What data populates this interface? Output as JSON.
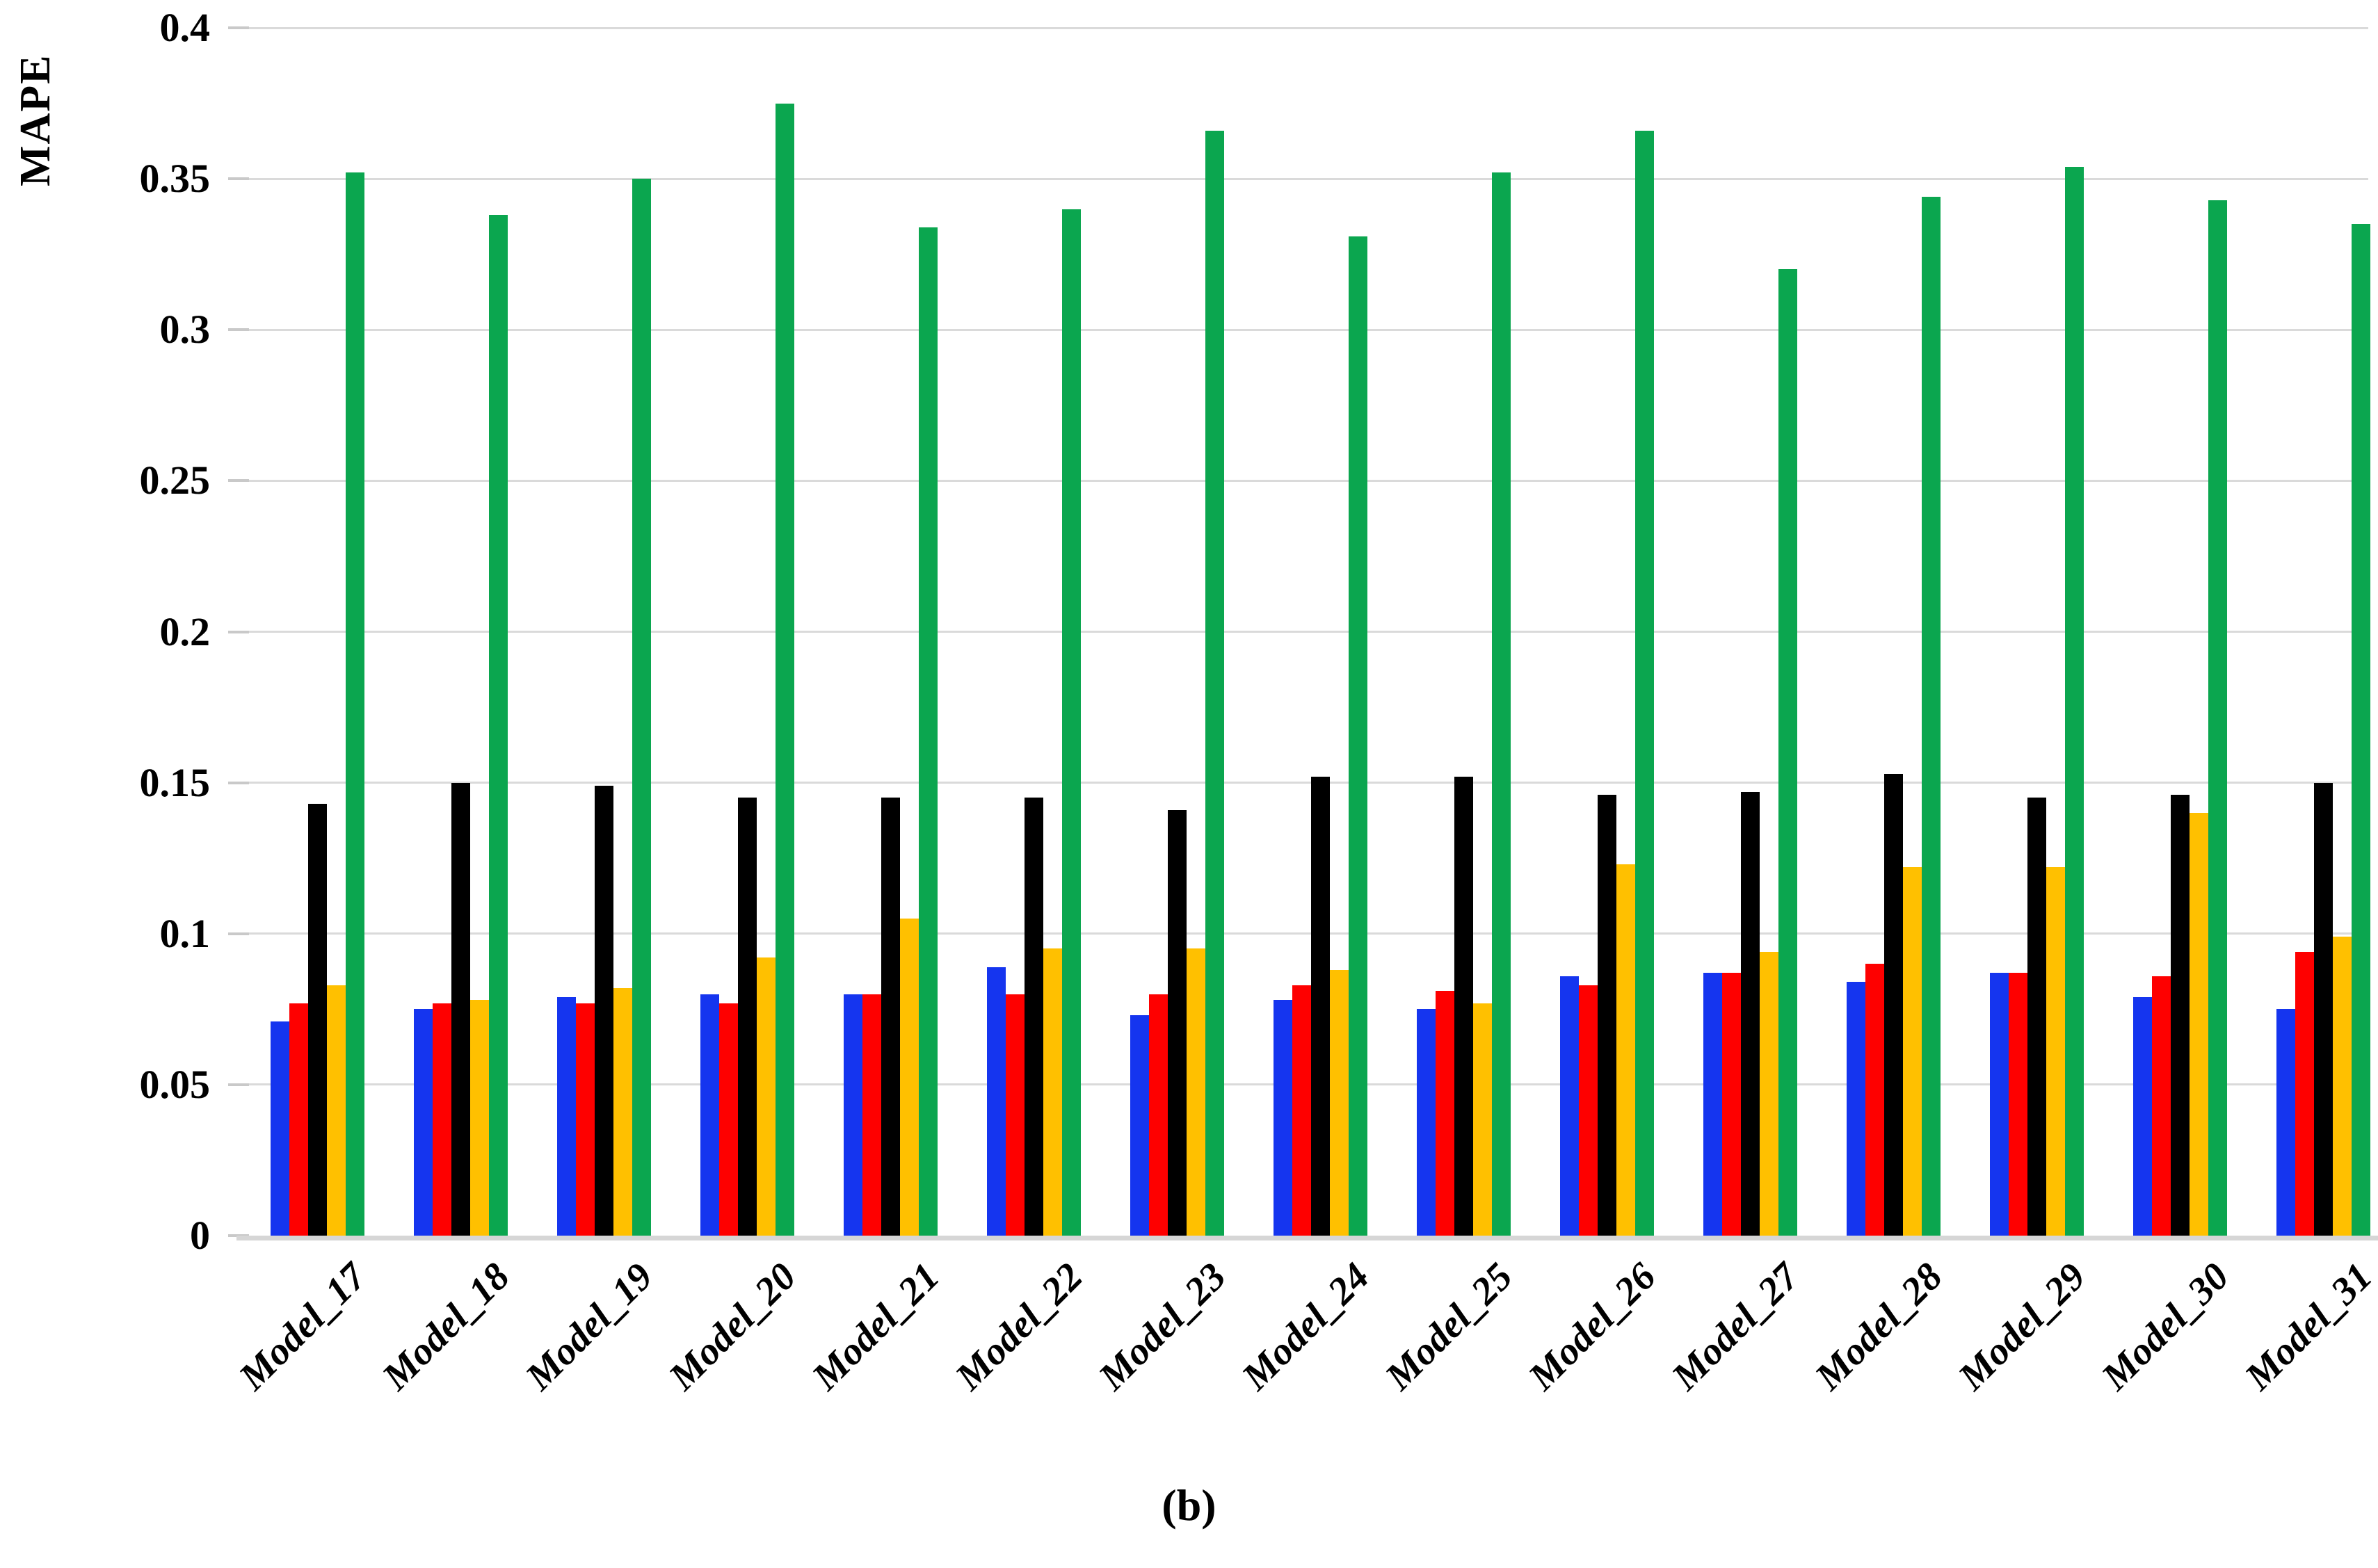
{
  "figure": {
    "caption": "(b)"
  },
  "chart_data": {
    "type": "bar",
    "title": "",
    "xlabel": "",
    "ylabel": "MAPE",
    "ylim": [
      0,
      0.4
    ],
    "grid": true,
    "legend": "none",
    "categories": [
      "Model_17",
      "Model_18",
      "Model_19",
      "Model_20",
      "Model_21",
      "Model_22",
      "Model_23",
      "Model_24",
      "Model_25",
      "Model_26",
      "Model_27",
      "Model_28",
      "Model_29",
      "Model_30",
      "Model_31"
    ],
    "yticks": [
      {
        "value": 0,
        "label": "0"
      },
      {
        "value": 0.05,
        "label": "0.05"
      },
      {
        "value": 0.1,
        "label": "0.1"
      },
      {
        "value": 0.15,
        "label": "0.15"
      },
      {
        "value": 0.2,
        "label": "0.2"
      },
      {
        "value": 0.25,
        "label": "0.25"
      },
      {
        "value": 0.3,
        "label": "0.3"
      },
      {
        "value": 0.35,
        "label": "0.35"
      },
      {
        "value": 0.4,
        "label": "0.4"
      }
    ],
    "series": [
      {
        "name": "blue-series",
        "color": "#1535ef",
        "values": [
          0.071,
          0.075,
          0.079,
          0.08,
          0.08,
          0.089,
          0.073,
          0.078,
          0.075,
          0.086,
          0.087,
          0.084,
          0.087,
          0.079,
          0.075
        ]
      },
      {
        "name": "red-series",
        "color": "#fe0000",
        "values": [
          0.077,
          0.077,
          0.077,
          0.077,
          0.08,
          0.08,
          0.08,
          0.083,
          0.081,
          0.083,
          0.087,
          0.09,
          0.087,
          0.086,
          0.094
        ]
      },
      {
        "name": "black-series",
        "color": "#000000",
        "values": [
          0.143,
          0.15,
          0.149,
          0.145,
          0.145,
          0.145,
          0.141,
          0.152,
          0.152,
          0.146,
          0.147,
          0.153,
          0.145,
          0.146,
          0.15
        ]
      },
      {
        "name": "yellow-series",
        "color": "#ffc000",
        "values": [
          0.083,
          0.078,
          0.082,
          0.092,
          0.105,
          0.095,
          0.095,
          0.088,
          0.077,
          0.123,
          0.094,
          0.122,
          0.122,
          0.14,
          0.099
        ]
      },
      {
        "name": "green-series",
        "color": "#0ba64f",
        "values": [
          0.352,
          0.338,
          0.35,
          0.375,
          0.334,
          0.34,
          0.366,
          0.331,
          0.352,
          0.366,
          0.32,
          0.344,
          0.354,
          0.343,
          0.335
        ]
      }
    ],
    "colors": {
      "gridline": "#dadada",
      "axis_line": "#d6d6d6",
      "tick": "#c9c9c9"
    }
  }
}
